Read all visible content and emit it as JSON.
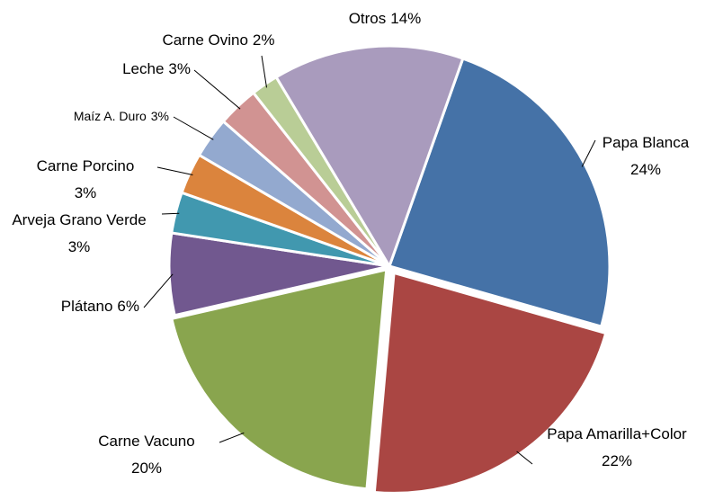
{
  "chart_data": {
    "type": "pie",
    "categories": [
      "Papa Blanca",
      "Papa Amarilla+Color",
      "Carne Vacuno",
      "Plátano",
      "Arveja Grano Verde",
      "Carne Porcino",
      "Maíz A. Duro",
      "Leche",
      "Carne Ovino",
      "Otros"
    ],
    "values": [
      24,
      22,
      20,
      6,
      3,
      3,
      3,
      3,
      2,
      14
    ],
    "value_labels": [
      "24%",
      "22%",
      "20%",
      "6%",
      "3%",
      "3%",
      "3%",
      "3%",
      "2%",
      "14%"
    ],
    "colors": [
      "#4572a7",
      "#aa4643",
      "#89a54e",
      "#71588f",
      "#4198af",
      "#db843d",
      "#93a9cf",
      "#d19392",
      "#b9cd96",
      "#a99bbd"
    ]
  }
}
